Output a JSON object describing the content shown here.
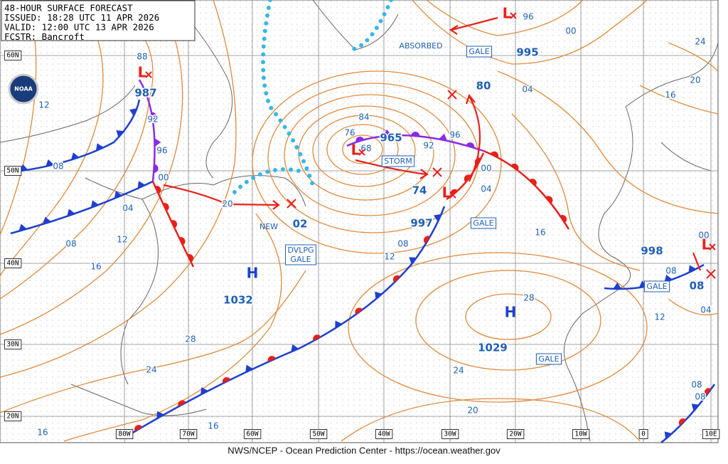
{
  "header": {
    "lines": [
      "48-HOUR SURFACE FORECAST",
      "ISSUED: 18:28 UTC 11 APR 2026",
      "VALID: 12:00 UTC 13 APR 2026",
      "FCSTR: Bancroft"
    ],
    "logo": "NOAA"
  },
  "footer": "NWS/NCEP - Ocean Prediction Center - https://ocean.weather.gov",
  "latitude_labels": [
    "60N",
    "50N",
    "40N",
    "30N",
    "20N"
  ],
  "longitude_labels": [
    "80W",
    "70W",
    "60W",
    "50W",
    "40W",
    "30W",
    "20W",
    "10W",
    "0",
    "10E"
  ],
  "pressure_centers": [
    {
      "symbol": "L",
      "pressure": "987"
    },
    {
      "symbol": "L",
      "pressure": "965"
    },
    {
      "symbol": "L",
      "pressure": "997"
    },
    {
      "symbol": "L",
      "pressure": "995"
    },
    {
      "symbol": "L",
      "pressure": "08"
    },
    {
      "symbol": "H",
      "pressure": "1032"
    },
    {
      "symbol": "H",
      "pressure": "1029"
    }
  ],
  "other_pressures": [
    "998",
    "02",
    "74",
    "80"
  ],
  "annotations": [
    "ABSORBED",
    "GALE",
    "STORM",
    "GALE",
    "GALE",
    "GALE",
    "NEW"
  ],
  "developing": [
    "DVLPG",
    "GALE"
  ],
  "isobar_labels": [
    "88",
    "92",
    "96",
    "00",
    "12",
    "08",
    "04",
    "08",
    "12",
    "16",
    "20",
    "84",
    "76",
    "68",
    "92",
    "96",
    "00",
    "04",
    "08",
    "12",
    "16",
    "04",
    "00",
    "96",
    "24",
    "20",
    "16",
    "28",
    "24",
    "20",
    "28",
    "24",
    "16",
    "16",
    "08",
    "12",
    "04",
    "00",
    "08",
    "08"
  ]
}
